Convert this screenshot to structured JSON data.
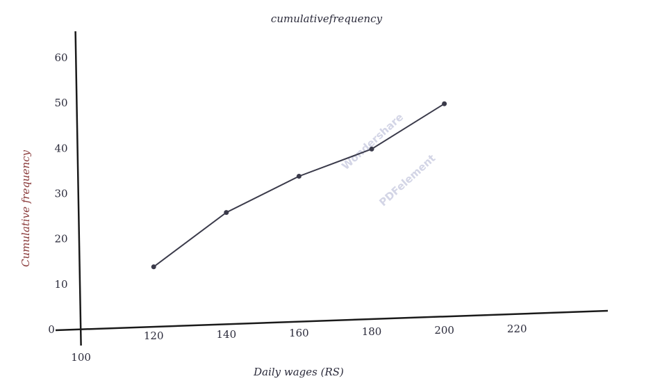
{
  "chart_data": {
    "type": "line",
    "title": "cumulativefrequency",
    "x_label": "Daily wages (RS)",
    "y_label": "Cumulative frequency",
    "x": [
      120,
      140,
      160,
      180,
      200
    ],
    "series": [
      {
        "name": "Cumulative frequency",
        "color": "#3a3a4a",
        "values": [
          14,
          26,
          34,
          40,
          50
        ]
      }
    ],
    "xlim": [
      93,
      245
    ],
    "ylim": [
      0,
      66
    ],
    "xticks": [
      100,
      120,
      140,
      160,
      180,
      200,
      220
    ],
    "yticks": [
      0,
      10,
      20,
      30,
      40,
      50,
      60
    ],
    "grid": false
  },
  "watermark": {
    "line1": "Wondershare",
    "line2": "PDFelement"
  }
}
